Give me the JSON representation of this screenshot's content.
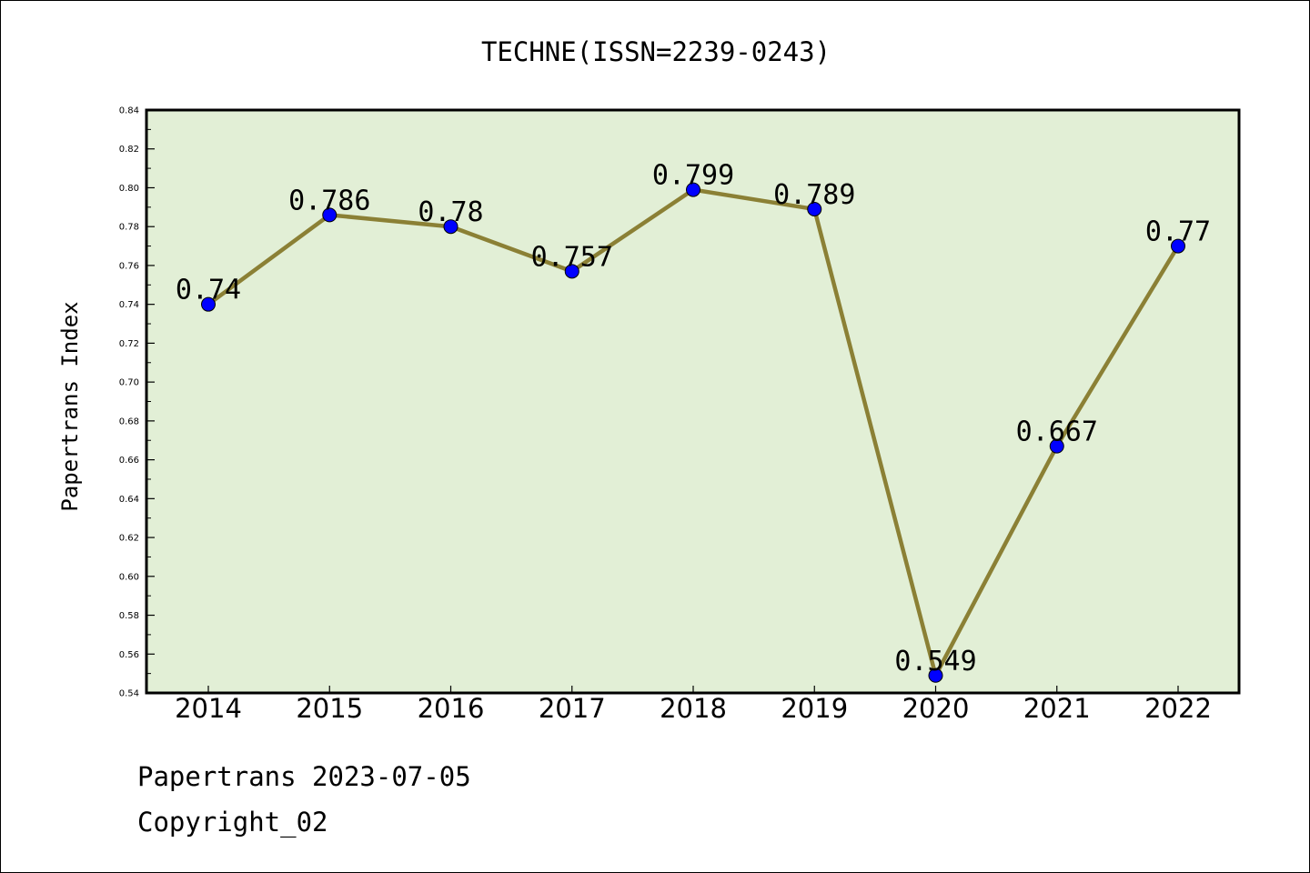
{
  "chart_data": {
    "type": "line",
    "title": "TECHNE(ISSN=2239-0243)",
    "xlabel": "",
    "ylabel": "Papertrans Index",
    "categories": [
      "2014",
      "2015",
      "2016",
      "2017",
      "2018",
      "2019",
      "2020",
      "2021",
      "2022"
    ],
    "series": [
      {
        "values": [
          0.74,
          0.786,
          0.78,
          0.757,
          0.799,
          0.789,
          0.549,
          0.667,
          0.77
        ],
        "value_labels": [
          "0.74",
          "0.786",
          "0.78",
          "0.757",
          "0.799",
          "0.789",
          "0.549",
          "0.667",
          "0.77"
        ],
        "line_color": "#8b8035",
        "marker_color": "#0000ff"
      }
    ],
    "y_ticks": [
      "0.54",
      "0.56",
      "0.58",
      "0.60",
      "0.62",
      "0.64",
      "0.66",
      "0.68",
      "0.70",
      "0.72",
      "0.74",
      "0.76",
      "0.78",
      "0.80",
      "0.82",
      "0.84"
    ],
    "ylim": [
      0.54,
      0.84
    ],
    "grid": false,
    "plot_background": "#e2efd6"
  },
  "footer": {
    "date_line": "Papertrans 2023-07-05",
    "copyright": "Copyright_02"
  }
}
